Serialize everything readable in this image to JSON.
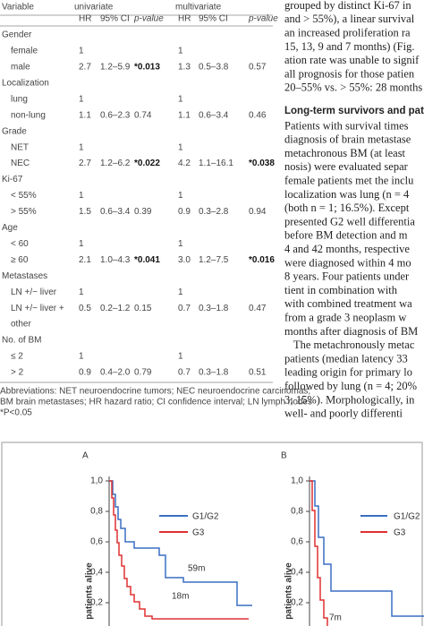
{
  "table": {
    "header": {
      "variable": "Variable",
      "univariate": "univariate",
      "multivariate": "multivariate",
      "columns": [
        "HR",
        "95% CI",
        "p-value",
        "HR",
        "95% CI",
        "p-value"
      ]
    },
    "groups": [
      {
        "name": "Gender",
        "rows": [
          {
            "label": "female",
            "cells": [
              "1",
              null,
              null,
              "1",
              null,
              null
            ]
          },
          {
            "label": "male",
            "cells": [
              "2.7",
              "1.2–5.9",
              "*0.013",
              "1.3",
              "0.5–3.8",
              "0.57"
            ]
          }
        ]
      },
      {
        "name": "Localization",
        "rows": [
          {
            "label": "lung",
            "cells": [
              "1",
              null,
              null,
              "1",
              null,
              null
            ]
          },
          {
            "label": "non-lung",
            "cells": [
              "1.1",
              "0.6–2.3",
              "0.74",
              "1.1",
              "0.6–3.4",
              "0.46"
            ]
          }
        ]
      },
      {
        "name": "Grade",
        "rows": [
          {
            "label": "NET",
            "cells": [
              "1",
              null,
              null,
              "1",
              null,
              null
            ]
          },
          {
            "label": "NEC",
            "cells": [
              "2.7",
              "1.2–6.2",
              "*0.022",
              "4.2",
              "1.1–16.1",
              "*0.038"
            ]
          }
        ]
      },
      {
        "name": "Ki-67",
        "rows": [
          {
            "label": "< 55%",
            "cells": [
              "1",
              null,
              null,
              "1",
              null,
              null
            ]
          },
          {
            "label": "> 55%",
            "cells": [
              "1.5",
              "0.6–3.4",
              "0.39",
              "0.9",
              "0.3–2.8",
              "0.94"
            ]
          }
        ]
      },
      {
        "name": "Age",
        "rows": [
          {
            "label": "< 60",
            "cells": [
              "1",
              null,
              null,
              "1",
              null,
              null
            ]
          },
          {
            "label": "≥ 60",
            "cells": [
              "2.1",
              "1.0–4.3",
              "*0.041",
              "3.0",
              "1.2–7.5",
              "*0.016"
            ]
          }
        ]
      },
      {
        "name": "Metastases",
        "rows": [
          {
            "label": "LN +/− liver",
            "cells": [
              "1",
              null,
              null,
              "1",
              null,
              null
            ]
          },
          {
            "label": "LN +/− liver +",
            "label_cont": "other",
            "cells": [
              "0.5",
              "0.2–1.2",
              "0.15",
              "0.7",
              "0.3–1.8",
              "0.47"
            ]
          }
        ]
      },
      {
        "name": "No. of BM",
        "rows": [
          {
            "label": "≤ 2",
            "cells": [
              "1",
              null,
              null,
              "1",
              null,
              null
            ]
          },
          {
            "label": "> 2",
            "cells": [
              "0.9",
              "0.4–2.0",
              "0.79",
              "0.7",
              "0.3–1.8",
              "0.51"
            ]
          }
        ]
      }
    ],
    "footnote": [
      "Abbreviations: NET neuroendocrine tumors; NEC neuroendocrine carcinomas;",
      "BM brain metastases; HR hazard ratio; CI confidence interval; LN lymph nodes",
      "*P<0.05"
    ]
  },
  "body_text": {
    "para1": [
      "grouped by distinct Ki-67 in",
      "and > 55%), a linear survival",
      "an increased proliferation ra",
      "15, 13, 9 and 7 months) (Fig.",
      "ation rate was unable to signif",
      "all prognosis for those patien",
      "20–55% vs. > 55%: 28 months"
    ],
    "heading": "Long-term survivors and patie",
    "para2": [
      "Patients with survival times",
      "diagnosis of brain metastase",
      "metachronous BM (at least",
      "nosis) were evaluated separ",
      "female patients met the inclu",
      "localization was lung (n = 4",
      "(both n = 1; 16.5%). Except",
      "presented G2 well differentia",
      "before BM detection and m",
      "4 and 42 months, respective",
      "were diagnosed within 4 mo",
      "8 years. Four patients under",
      "tient in combination with",
      "with combined treatment wa",
      "from a grade 3 neoplasm w",
      "months after diagnosis of BM"
    ],
    "para3": [
      "The metachronously metac",
      "patients (median latency 33",
      "leading origin for primary lo",
      "followed by lung (n = 4; 20%",
      "3; 15%). Morphologically, in",
      "well- and poorly differenti"
    ]
  },
  "figure": {
    "panels": [
      {
        "label": "A",
        "ylabel": "patients alive",
        "yticks": [
          "1,0",
          "0,8",
          "0,6",
          "0,4",
          "0,2"
        ],
        "legend": [
          "G1/G2",
          "G3"
        ],
        "annotations": [
          "59m",
          "18m"
        ]
      },
      {
        "label": "B",
        "ylabel": "patients alive",
        "yticks": [
          "1,0",
          "0,8",
          "0,6",
          "0,4",
          "0,2"
        ],
        "legend": [
          "G1/G2",
          "G3"
        ],
        "annotations": [
          "7m"
        ]
      }
    ]
  }
}
